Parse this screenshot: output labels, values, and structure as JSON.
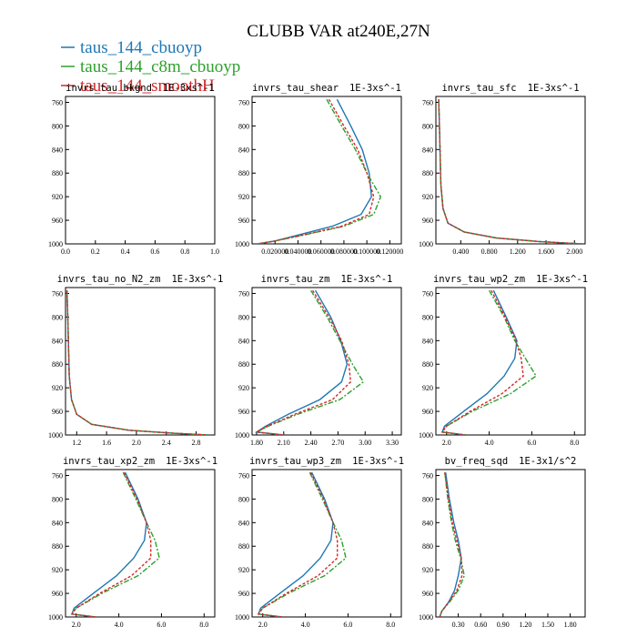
{
  "figure": {
    "title": "CLUBB VAR at240E,27N",
    "legend": [
      {
        "label": "taus_144_cbuoyp",
        "color": "#1f77b4"
      },
      {
        "label": "taus_144_c8m_cbuoyp",
        "color": "#2ca02c"
      },
      {
        "label": "taus_144_smoothH",
        "color": "#d62728"
      }
    ]
  },
  "chart_data": [
    {
      "type": "line",
      "title": "invrs_tau_bkgnd",
      "unit": "1E-3xs^-1",
      "xticks": [
        "0.0",
        "0.2",
        "0.4",
        "0.6",
        "0.8",
        "1.0"
      ],
      "xlim": [
        0,
        1
      ],
      "yticks": [
        "760",
        "800",
        "840",
        "880",
        "920",
        "960",
        "1000"
      ],
      "ylim": [
        1000,
        750
      ],
      "series": []
    },
    {
      "type": "line",
      "title": "invrs_tau_shear",
      "unit": "1E-3xs^-1",
      "xticks": [
        "0.020000",
        "0.040000",
        "0.060000",
        "0.080000",
        "0.100000",
        "0.120000"
      ],
      "xlim": [
        0.0,
        0.13
      ],
      "yticks": [
        "760",
        "800",
        "840",
        "880",
        "920",
        "960",
        "1000"
      ],
      "ylim": [
        1000,
        750
      ],
      "series": [
        {
          "y": [
            755,
            800,
            840,
            880,
            920,
            950,
            970,
            985,
            995,
            1000
          ],
          "x": [
            0.074,
            0.086,
            0.096,
            0.102,
            0.104,
            0.095,
            0.07,
            0.04,
            0.02,
            0.005
          ]
        },
        {
          "y": [
            755,
            800,
            840,
            880,
            920,
            950,
            970,
            985,
            995,
            1000
          ],
          "x": [
            0.065,
            0.078,
            0.09,
            0.1,
            0.112,
            0.106,
            0.08,
            0.045,
            0.02,
            0.005
          ]
        },
        {
          "y": [
            755,
            800,
            840,
            880,
            920,
            950,
            970,
            985,
            995,
            1000
          ],
          "x": [
            0.067,
            0.08,
            0.092,
            0.1,
            0.106,
            0.102,
            0.078,
            0.044,
            0.02,
            0.005
          ]
        }
      ]
    },
    {
      "type": "line",
      "title": "invrs_tau_sfc",
      "unit": "1E-3xs^-1",
      "xticks": [
        "0.400",
        "0.800",
        "1.200",
        "1.600",
        "2.000"
      ],
      "xlim": [
        0.05,
        2.15
      ],
      "yticks": [
        "760",
        "800",
        "840",
        "880",
        "920",
        "960",
        "1000"
      ],
      "ylim": [
        1000,
        750
      ],
      "series": [
        {
          "y": [
            755,
            800,
            850,
            900,
            940,
            965,
            980,
            990,
            996,
            1000
          ],
          "x": [
            0.09,
            0.1,
            0.11,
            0.12,
            0.15,
            0.22,
            0.45,
            0.9,
            1.5,
            2.1
          ]
        },
        {
          "y": [
            755,
            800,
            850,
            900,
            940,
            965,
            980,
            990,
            996,
            1000
          ],
          "x": [
            0.09,
            0.1,
            0.11,
            0.12,
            0.15,
            0.22,
            0.45,
            0.9,
            1.5,
            2.1
          ]
        },
        {
          "y": [
            755,
            800,
            850,
            900,
            940,
            965,
            980,
            990,
            996,
            1000
          ],
          "x": [
            0.09,
            0.1,
            0.11,
            0.12,
            0.15,
            0.22,
            0.45,
            0.9,
            1.5,
            2.1
          ]
        }
      ]
    },
    {
      "type": "line",
      "title": "invrs_tau_no_N2_zm",
      "unit": "1E-3xs^-1",
      "xticks": [
        "1.2",
        "1.6",
        "2.0",
        "2.4",
        "2.8"
      ],
      "xlim": [
        1.05,
        3.05
      ],
      "yticks": [
        "760",
        "800",
        "840",
        "880",
        "920",
        "960",
        "1000"
      ],
      "ylim": [
        1000,
        750
      ],
      "series": [
        {
          "y": [
            755,
            800,
            850,
            900,
            940,
            965,
            982,
            992,
            997,
            1000
          ],
          "x": [
            1.07,
            1.08,
            1.09,
            1.1,
            1.13,
            1.2,
            1.4,
            1.9,
            2.5,
            2.95
          ]
        },
        {
          "y": [
            755,
            800,
            850,
            900,
            940,
            965,
            982,
            992,
            997,
            1000
          ],
          "x": [
            1.07,
            1.08,
            1.09,
            1.1,
            1.13,
            1.2,
            1.4,
            1.9,
            2.5,
            2.95
          ]
        },
        {
          "y": [
            755,
            800,
            850,
            900,
            940,
            965,
            982,
            992,
            997,
            1000
          ],
          "x": [
            1.07,
            1.08,
            1.09,
            1.1,
            1.13,
            1.2,
            1.4,
            1.9,
            2.5,
            2.95
          ]
        }
      ]
    },
    {
      "type": "line",
      "title": "invrs_tau_zm",
      "unit": "1E-3xs^-1",
      "xticks": [
        "1.80",
        "2.10",
        "2.40",
        "2.70",
        "3.00",
        "3.30"
      ],
      "xlim": [
        1.75,
        3.4
      ],
      "yticks": [
        "760",
        "800",
        "840",
        "880",
        "920",
        "960",
        "1000"
      ],
      "ylim": [
        1000,
        750
      ],
      "series": [
        {
          "y": [
            755,
            800,
            840,
            880,
            910,
            940,
            965,
            985,
            995,
            1000
          ],
          "x": [
            2.45,
            2.62,
            2.73,
            2.8,
            2.74,
            2.5,
            2.15,
            1.9,
            1.8,
            2.1
          ]
        },
        {
          "y": [
            755,
            800,
            840,
            880,
            910,
            940,
            965,
            985,
            995,
            1000
          ],
          "x": [
            2.4,
            2.58,
            2.72,
            2.86,
            2.98,
            2.72,
            2.25,
            1.93,
            1.8,
            2.1
          ]
        },
        {
          "y": [
            755,
            800,
            840,
            880,
            910,
            940,
            965,
            985,
            995,
            1000
          ],
          "x": [
            2.42,
            2.6,
            2.74,
            2.82,
            2.84,
            2.64,
            2.22,
            1.92,
            1.8,
            2.1
          ]
        }
      ]
    },
    {
      "type": "line",
      "title": "invrs_tau_wp2_zm",
      "unit": "1E-3xs^-1",
      "xticks": [
        "2.0",
        "4.0",
        "6.0",
        "8.0"
      ],
      "xlim": [
        1.5,
        8.5
      ],
      "yticks": [
        "760",
        "800",
        "840",
        "880",
        "920",
        "960",
        "1000"
      ],
      "ylim": [
        1000,
        750
      ],
      "series": [
        {
          "y": [
            755,
            800,
            840,
            870,
            900,
            930,
            960,
            985,
            995,
            1000
          ],
          "x": [
            4.2,
            4.8,
            5.3,
            5.2,
            4.7,
            3.9,
            2.8,
            1.9,
            1.8,
            2.9
          ]
        },
        {
          "y": [
            755,
            800,
            840,
            870,
            900,
            930,
            960,
            985,
            995,
            1000
          ],
          "x": [
            4.0,
            4.7,
            5.2,
            5.7,
            6.2,
            5.0,
            3.2,
            2.0,
            1.8,
            2.9
          ]
        },
        {
          "y": [
            755,
            800,
            840,
            870,
            900,
            930,
            960,
            985,
            995,
            1000
          ],
          "x": [
            4.1,
            4.75,
            5.25,
            5.5,
            5.6,
            4.6,
            3.1,
            2.0,
            1.8,
            2.9
          ]
        }
      ]
    },
    {
      "type": "line",
      "title": "invrs_tau_xp2_zm",
      "unit": "1E-3xs^-1",
      "xticks": [
        "2.0",
        "4.0",
        "6.0",
        "8.0"
      ],
      "xlim": [
        1.5,
        8.5
      ],
      "yticks": [
        "760",
        "800",
        "840",
        "880",
        "920",
        "960",
        "1000"
      ],
      "ylim": [
        1000,
        750
      ],
      "series": [
        {
          "y": [
            755,
            800,
            840,
            870,
            900,
            930,
            960,
            985,
            995,
            1000
          ],
          "x": [
            4.3,
            4.9,
            5.3,
            5.2,
            4.7,
            3.9,
            2.8,
            1.9,
            1.8,
            2.9
          ]
        },
        {
          "y": [
            755,
            800,
            840,
            870,
            900,
            930,
            960,
            985,
            995,
            1000
          ],
          "x": [
            4.2,
            4.8,
            5.3,
            5.7,
            5.9,
            4.9,
            3.2,
            2.0,
            1.8,
            2.9
          ]
        },
        {
          "y": [
            755,
            800,
            840,
            870,
            900,
            930,
            960,
            985,
            995,
            1000
          ],
          "x": [
            4.25,
            4.85,
            5.3,
            5.5,
            5.5,
            4.6,
            3.1,
            2.0,
            1.8,
            2.9
          ]
        }
      ]
    },
    {
      "type": "line",
      "title": "invrs_tau_wp3_zm",
      "unit": "1E-3xs^-1",
      "xticks": [
        "2.0",
        "4.0",
        "6.0",
        "8.0"
      ],
      "xlim": [
        1.5,
        8.5
      ],
      "yticks": [
        "760",
        "800",
        "840",
        "880",
        "920",
        "960",
        "1000"
      ],
      "ylim": [
        1000,
        750
      ],
      "series": [
        {
          "y": [
            755,
            800,
            840,
            870,
            900,
            930,
            960,
            985,
            995,
            1000
          ],
          "x": [
            4.3,
            4.9,
            5.3,
            5.2,
            4.7,
            3.9,
            2.8,
            1.9,
            1.8,
            2.9
          ]
        },
        {
          "y": [
            755,
            800,
            840,
            870,
            900,
            930,
            960,
            985,
            995,
            1000
          ],
          "x": [
            4.2,
            4.8,
            5.3,
            5.7,
            5.9,
            4.9,
            3.2,
            2.0,
            1.8,
            2.9
          ]
        },
        {
          "y": [
            755,
            800,
            840,
            870,
            900,
            930,
            960,
            985,
            995,
            1000
          ],
          "x": [
            4.25,
            4.85,
            5.3,
            5.5,
            5.5,
            4.6,
            3.1,
            2.0,
            1.8,
            2.9
          ]
        }
      ]
    },
    {
      "type": "line",
      "title": "bv_freq_sqd",
      "unit": "1E-3x1/s^2",
      "xticks": [
        "0.30",
        "0.60",
        "0.90",
        "1.20",
        "1.50",
        "1.80"
      ],
      "xlim": [
        0.0,
        2.0
      ],
      "yticks": [
        "760",
        "800",
        "840",
        "880",
        "920",
        "960",
        "1000"
      ],
      "ylim": [
        1000,
        750
      ],
      "series": [
        {
          "y": [
            755,
            800,
            840,
            870,
            900,
            930,
            955,
            975,
            990,
            1000
          ],
          "x": [
            0.13,
            0.18,
            0.24,
            0.3,
            0.34,
            0.3,
            0.25,
            0.17,
            0.08,
            0.05
          ]
        },
        {
          "y": [
            755,
            800,
            840,
            870,
            900,
            930,
            955,
            975,
            990,
            1000
          ],
          "x": [
            0.12,
            0.16,
            0.21,
            0.26,
            0.33,
            0.38,
            0.3,
            0.18,
            0.08,
            0.05
          ]
        },
        {
          "y": [
            755,
            800,
            840,
            870,
            900,
            930,
            955,
            975,
            990,
            1000
          ],
          "x": [
            0.12,
            0.17,
            0.22,
            0.28,
            0.34,
            0.35,
            0.28,
            0.17,
            0.08,
            0.05
          ]
        }
      ]
    }
  ]
}
